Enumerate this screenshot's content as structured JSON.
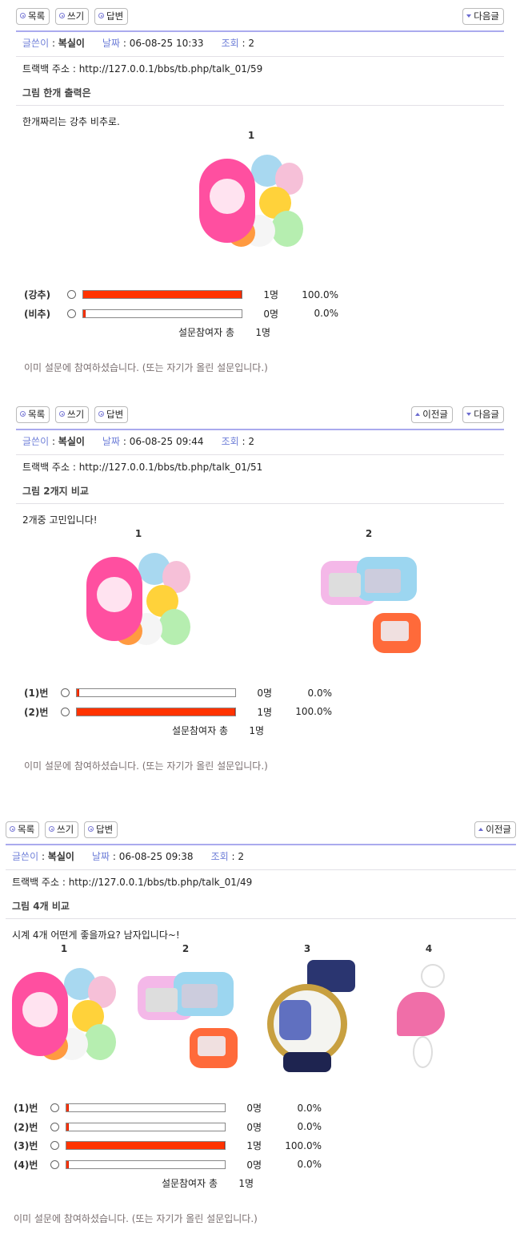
{
  "buttons": {
    "list": "목록",
    "write": "쓰기",
    "reply": "답변",
    "prev": "이전글",
    "next": "다음글"
  },
  "labels": {
    "author": "글쓴이",
    "date": "날짜",
    "views": "조회",
    "trackback": "트랙백 주소",
    "total": "설문참여자 총",
    "already": "이미 설문에 참여하셨습니다. (또는 자기가 올린 설문입니다.)"
  },
  "colors": {
    "accent": "#aaaaee",
    "meta_key": "#6f7fd8",
    "bar_fill": "#ff3300"
  },
  "posts": [
    {
      "nav": [
        "next"
      ],
      "author": "복실이",
      "date": "06-08-25 10:33",
      "views": "2",
      "trackback": "http://127.0.0.1/bbs/tb.php/talk_01/59",
      "title": "그림 한개 출력은",
      "body": "한개짜리는 강추 비추로.",
      "images": [
        {
          "num": "1",
          "kind": "colorful-watches"
        }
      ],
      "options": [
        {
          "label": "(강추)",
          "count": "1명",
          "percent": "100.0%",
          "value": 100
        },
        {
          "label": "(비추)",
          "count": "0명",
          "percent": "0.0%",
          "value": 0
        }
      ],
      "total": "1명"
    },
    {
      "nav": [
        "prev",
        "next"
      ],
      "author": "복실이",
      "date": "06-08-25 09:44",
      "views": "2",
      "trackback": "http://127.0.0.1/bbs/tb.php/talk_01/51",
      "title": "그림 2개지 비교",
      "body": "2개중 고민입니다!",
      "images": [
        {
          "num": "1",
          "kind": "colorful-watches"
        },
        {
          "num": "2",
          "kind": "square-watches"
        }
      ],
      "options": [
        {
          "label": "(1)번",
          "count": "0명",
          "percent": "0.0%",
          "value": 0
        },
        {
          "label": "(2)번",
          "count": "1명",
          "percent": "100.0%",
          "value": 100
        }
      ],
      "total": "1명"
    },
    {
      "nav": [
        "prev"
      ],
      "author": "복실이",
      "date": "06-08-25 09:38",
      "views": "2",
      "trackback": "http://127.0.0.1/bbs/tb.php/talk_01/49",
      "title": "그림 4개 비교",
      "body": "시계 4개 어떤게 좋을까요? 남자입니다~!",
      "images": [
        {
          "num": "1",
          "kind": "colorful-watches"
        },
        {
          "num": "2",
          "kind": "square-watches"
        },
        {
          "num": "3",
          "kind": "cartoon-watch"
        },
        {
          "num": "4",
          "kind": "heart-watch"
        }
      ],
      "options": [
        {
          "label": "(1)번",
          "count": "0명",
          "percent": "0.0%",
          "value": 0
        },
        {
          "label": "(2)번",
          "count": "0명",
          "percent": "0.0%",
          "value": 0
        },
        {
          "label": "(3)번",
          "count": "1명",
          "percent": "100.0%",
          "value": 100
        },
        {
          "label": "(4)번",
          "count": "0명",
          "percent": "0.0%",
          "value": 0
        }
      ],
      "total": "1명"
    }
  ]
}
